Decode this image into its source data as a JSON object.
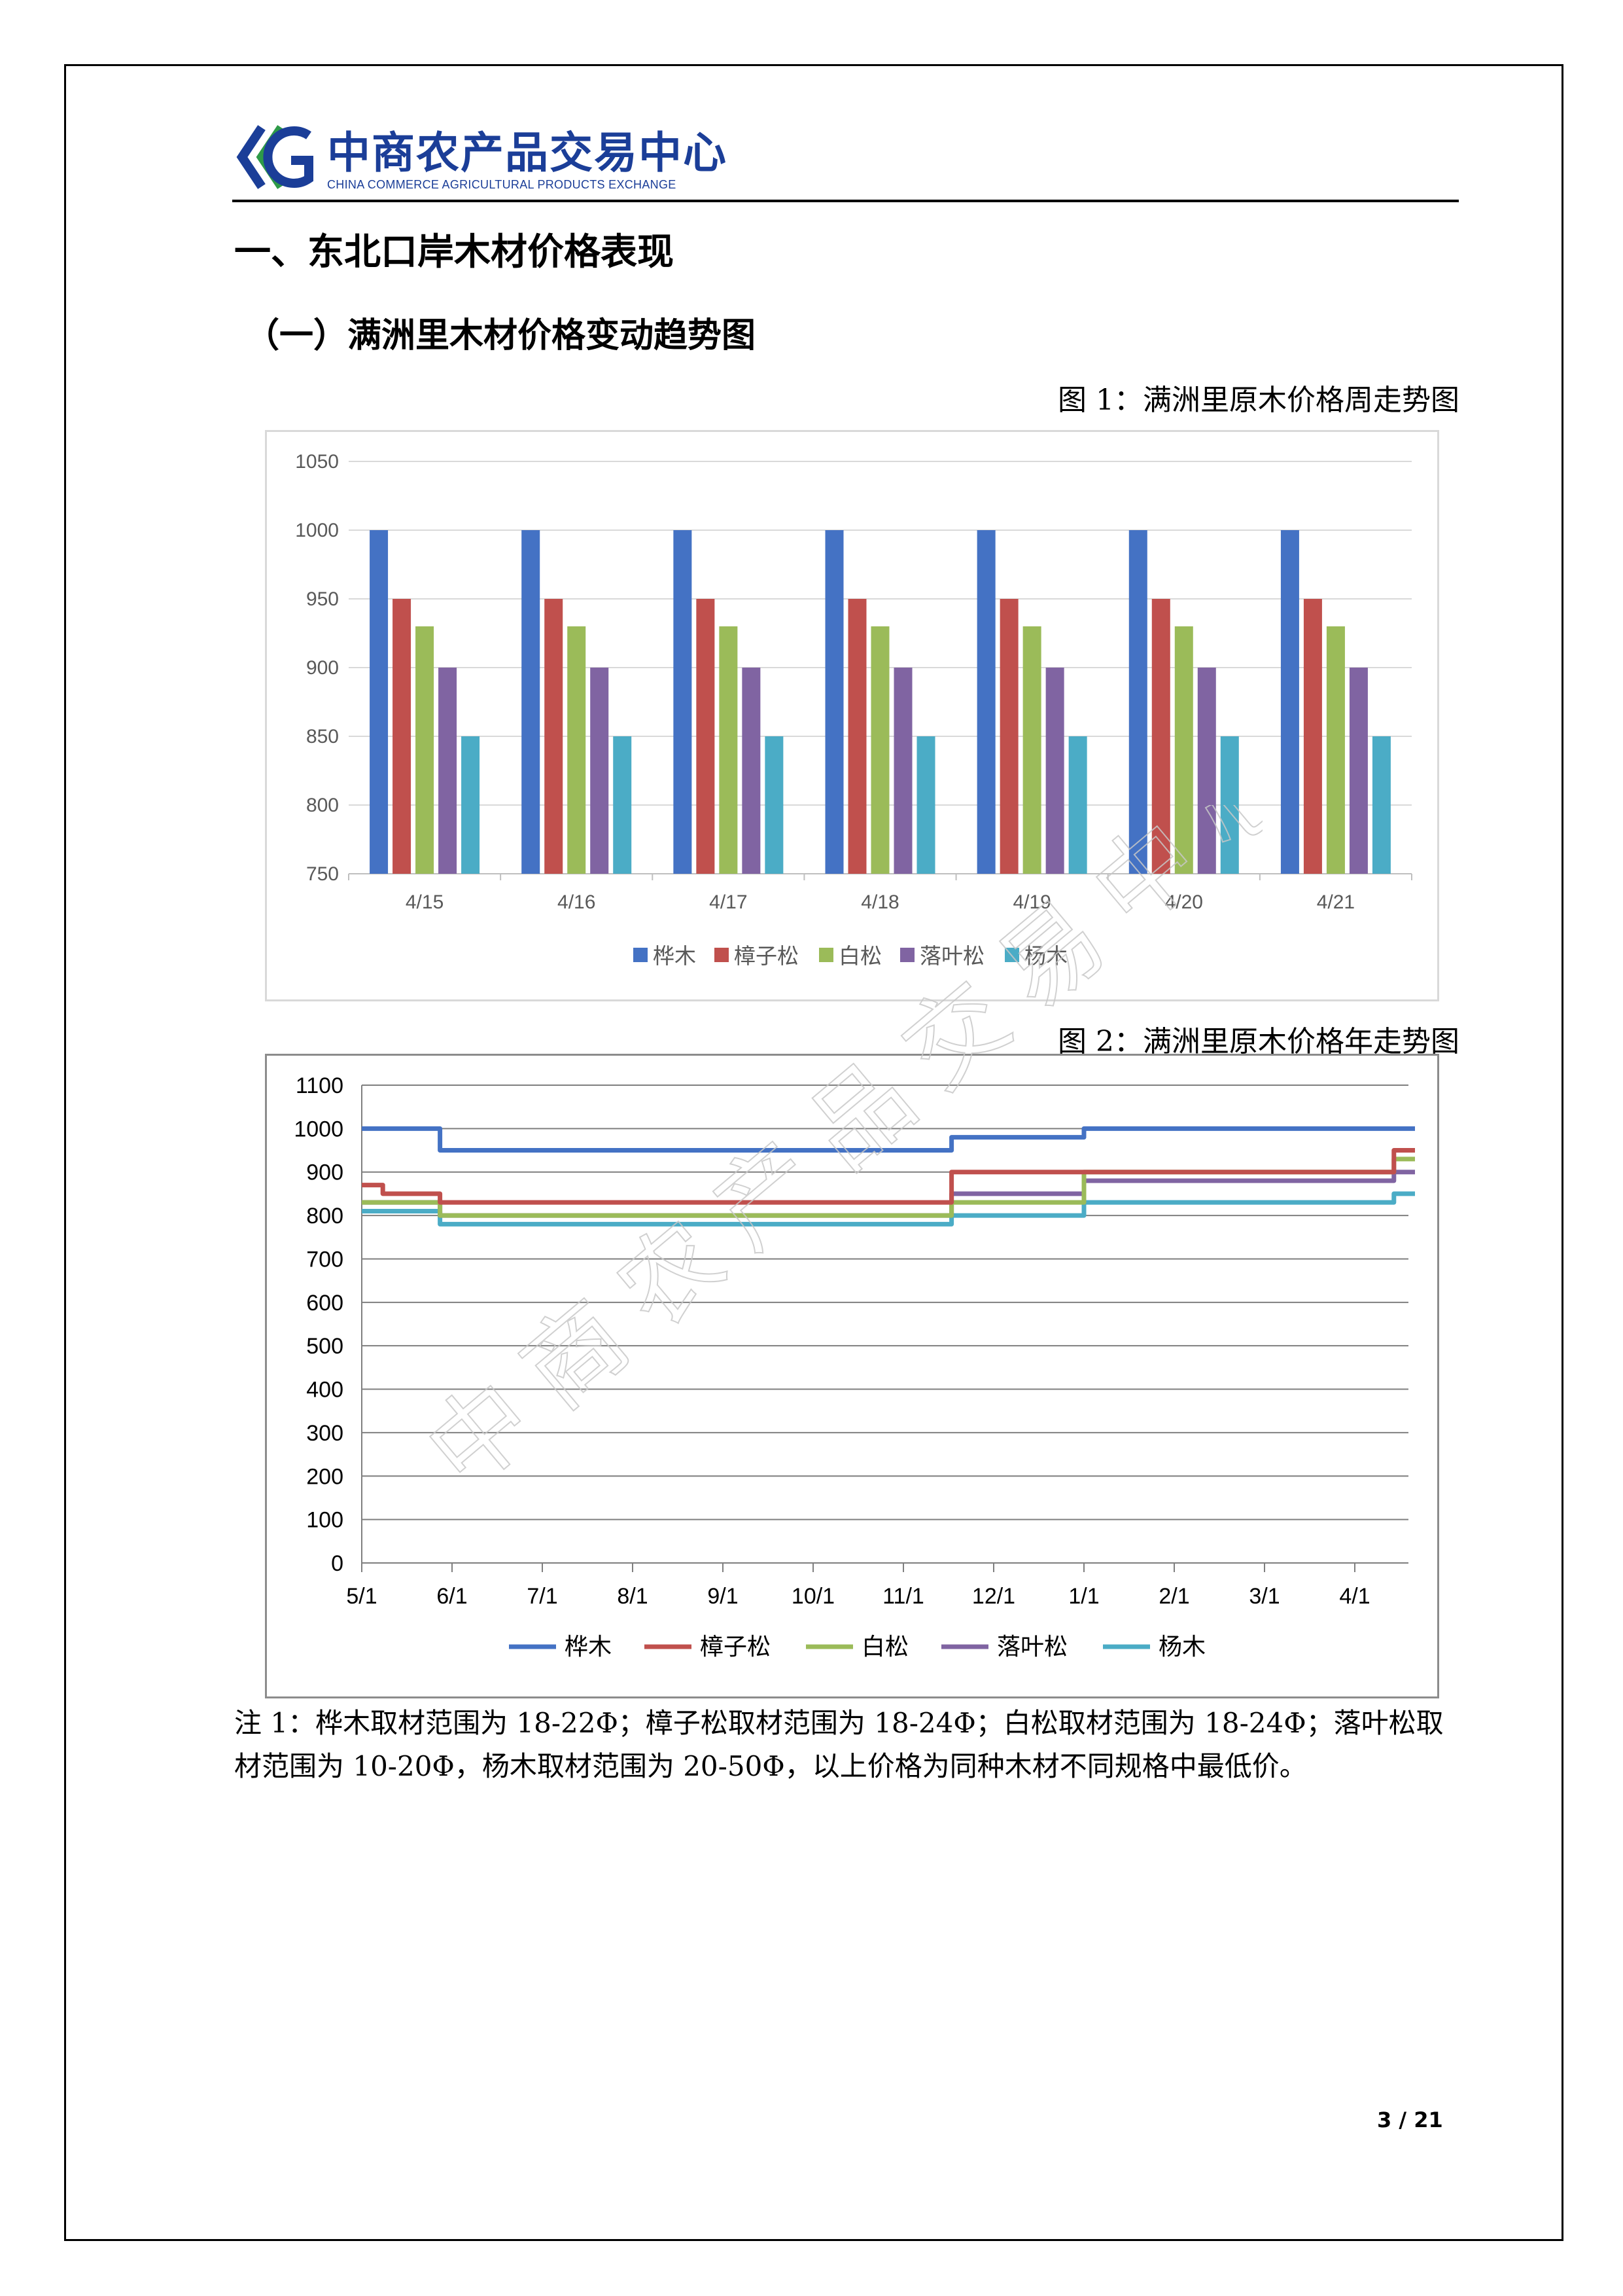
{
  "header": {
    "logo_cn": "中商农产品交易中心",
    "logo_en": "CHINA COMMERCE AGRICULTURAL PRODUCTS EXCHANGE"
  },
  "section_title": "一、东北口岸木材价格表现",
  "subsection_title": "（一）满洲里木材价格变动趋势图",
  "figure1_caption": "图 1：满洲里原木价格周走势图",
  "figure2_caption": "图 2：满洲里原木价格年走势图",
  "note": "注 1：桦木取材范围为 18-22Φ；樟子松取材范围为 18-24Φ；白松取材范围为 18-24Φ；落叶松取材范围为 10-20Φ，杨木取材范围为 20-50Φ，以上价格为同种木材不同规格中最低价。",
  "page_number": "3 / 21",
  "watermark": "中商农产品交易中心",
  "colors": {
    "birch": "#4472c4",
    "pine_sylvestris": "#c0504d",
    "white_pine": "#9bbb59",
    "larch": "#8064a2",
    "poplar": "#4bacc6",
    "brand_blue": "#1b3e98",
    "brand_green": "#2e9a48"
  },
  "chart_data": [
    {
      "type": "bar",
      "categories": [
        "4/15",
        "4/16",
        "4/17",
        "4/18",
        "4/19",
        "4/20",
        "4/21"
      ],
      "ylim": [
        750,
        1050
      ],
      "yticks": [
        750,
        800,
        850,
        900,
        950,
        1000,
        1050
      ],
      "grid": true,
      "legend": "bottom",
      "series": [
        {
          "name": "桦木",
          "values": [
            1000,
            1000,
            1000,
            1000,
            1000,
            1000,
            1000
          ]
        },
        {
          "name": "樟子松",
          "values": [
            950,
            950,
            950,
            950,
            950,
            950,
            950
          ]
        },
        {
          "name": "白松",
          "values": [
            930,
            930,
            930,
            930,
            930,
            930,
            930
          ]
        },
        {
          "name": "落叶松",
          "values": [
            900,
            900,
            900,
            900,
            900,
            900,
            900
          ]
        },
        {
          "name": "杨木",
          "values": [
            850,
            850,
            850,
            850,
            850,
            850,
            850
          ]
        }
      ]
    },
    {
      "type": "line",
      "x_ticks": [
        "5/1",
        "6/1",
        "7/1",
        "8/1",
        "9/1",
        "10/1",
        "11/1",
        "12/1",
        "1/1",
        "2/1",
        "3/1",
        "4/1"
      ],
      "ylim": [
        0,
        1100
      ],
      "yticks": [
        0,
        100,
        200,
        300,
        400,
        500,
        600,
        700,
        800,
        900,
        1000,
        1100
      ],
      "grid": true,
      "legend": "bottom",
      "series": [
        {
          "name": "桦木",
          "steps": [
            [
              "5/1",
              1000
            ],
            [
              "5/27",
              950
            ],
            [
              "11/17",
              980
            ],
            [
              "1/1",
              1000
            ],
            [
              "4/21",
              1000
            ]
          ]
        },
        {
          "name": "樟子松",
          "steps": [
            [
              "5/1",
              870
            ],
            [
              "5/8",
              850
            ],
            [
              "5/27",
              830
            ],
            [
              "11/17",
              900
            ],
            [
              "1/1",
              900
            ],
            [
              "4/14",
              950
            ],
            [
              "4/21",
              950
            ]
          ]
        },
        {
          "name": "白松",
          "steps": [
            [
              "5/1",
              830
            ],
            [
              "5/27",
              800
            ],
            [
              "11/17",
              830
            ],
            [
              "1/1",
              900
            ],
            [
              "4/14",
              930
            ],
            [
              "4/21",
              930
            ]
          ]
        },
        {
          "name": "落叶松",
          "steps": [
            [
              "5/1",
              830
            ],
            [
              "5/27",
              800
            ],
            [
              "11/17",
              850
            ],
            [
              "1/1",
              880
            ],
            [
              "4/14",
              900
            ],
            [
              "4/21",
              900
            ]
          ]
        },
        {
          "name": "杨木",
          "steps": [
            [
              "5/1",
              810
            ],
            [
              "5/27",
              780
            ],
            [
              "11/17",
              800
            ],
            [
              "1/1",
              830
            ],
            [
              "4/14",
              850
            ],
            [
              "4/21",
              850
            ]
          ]
        }
      ]
    }
  ]
}
